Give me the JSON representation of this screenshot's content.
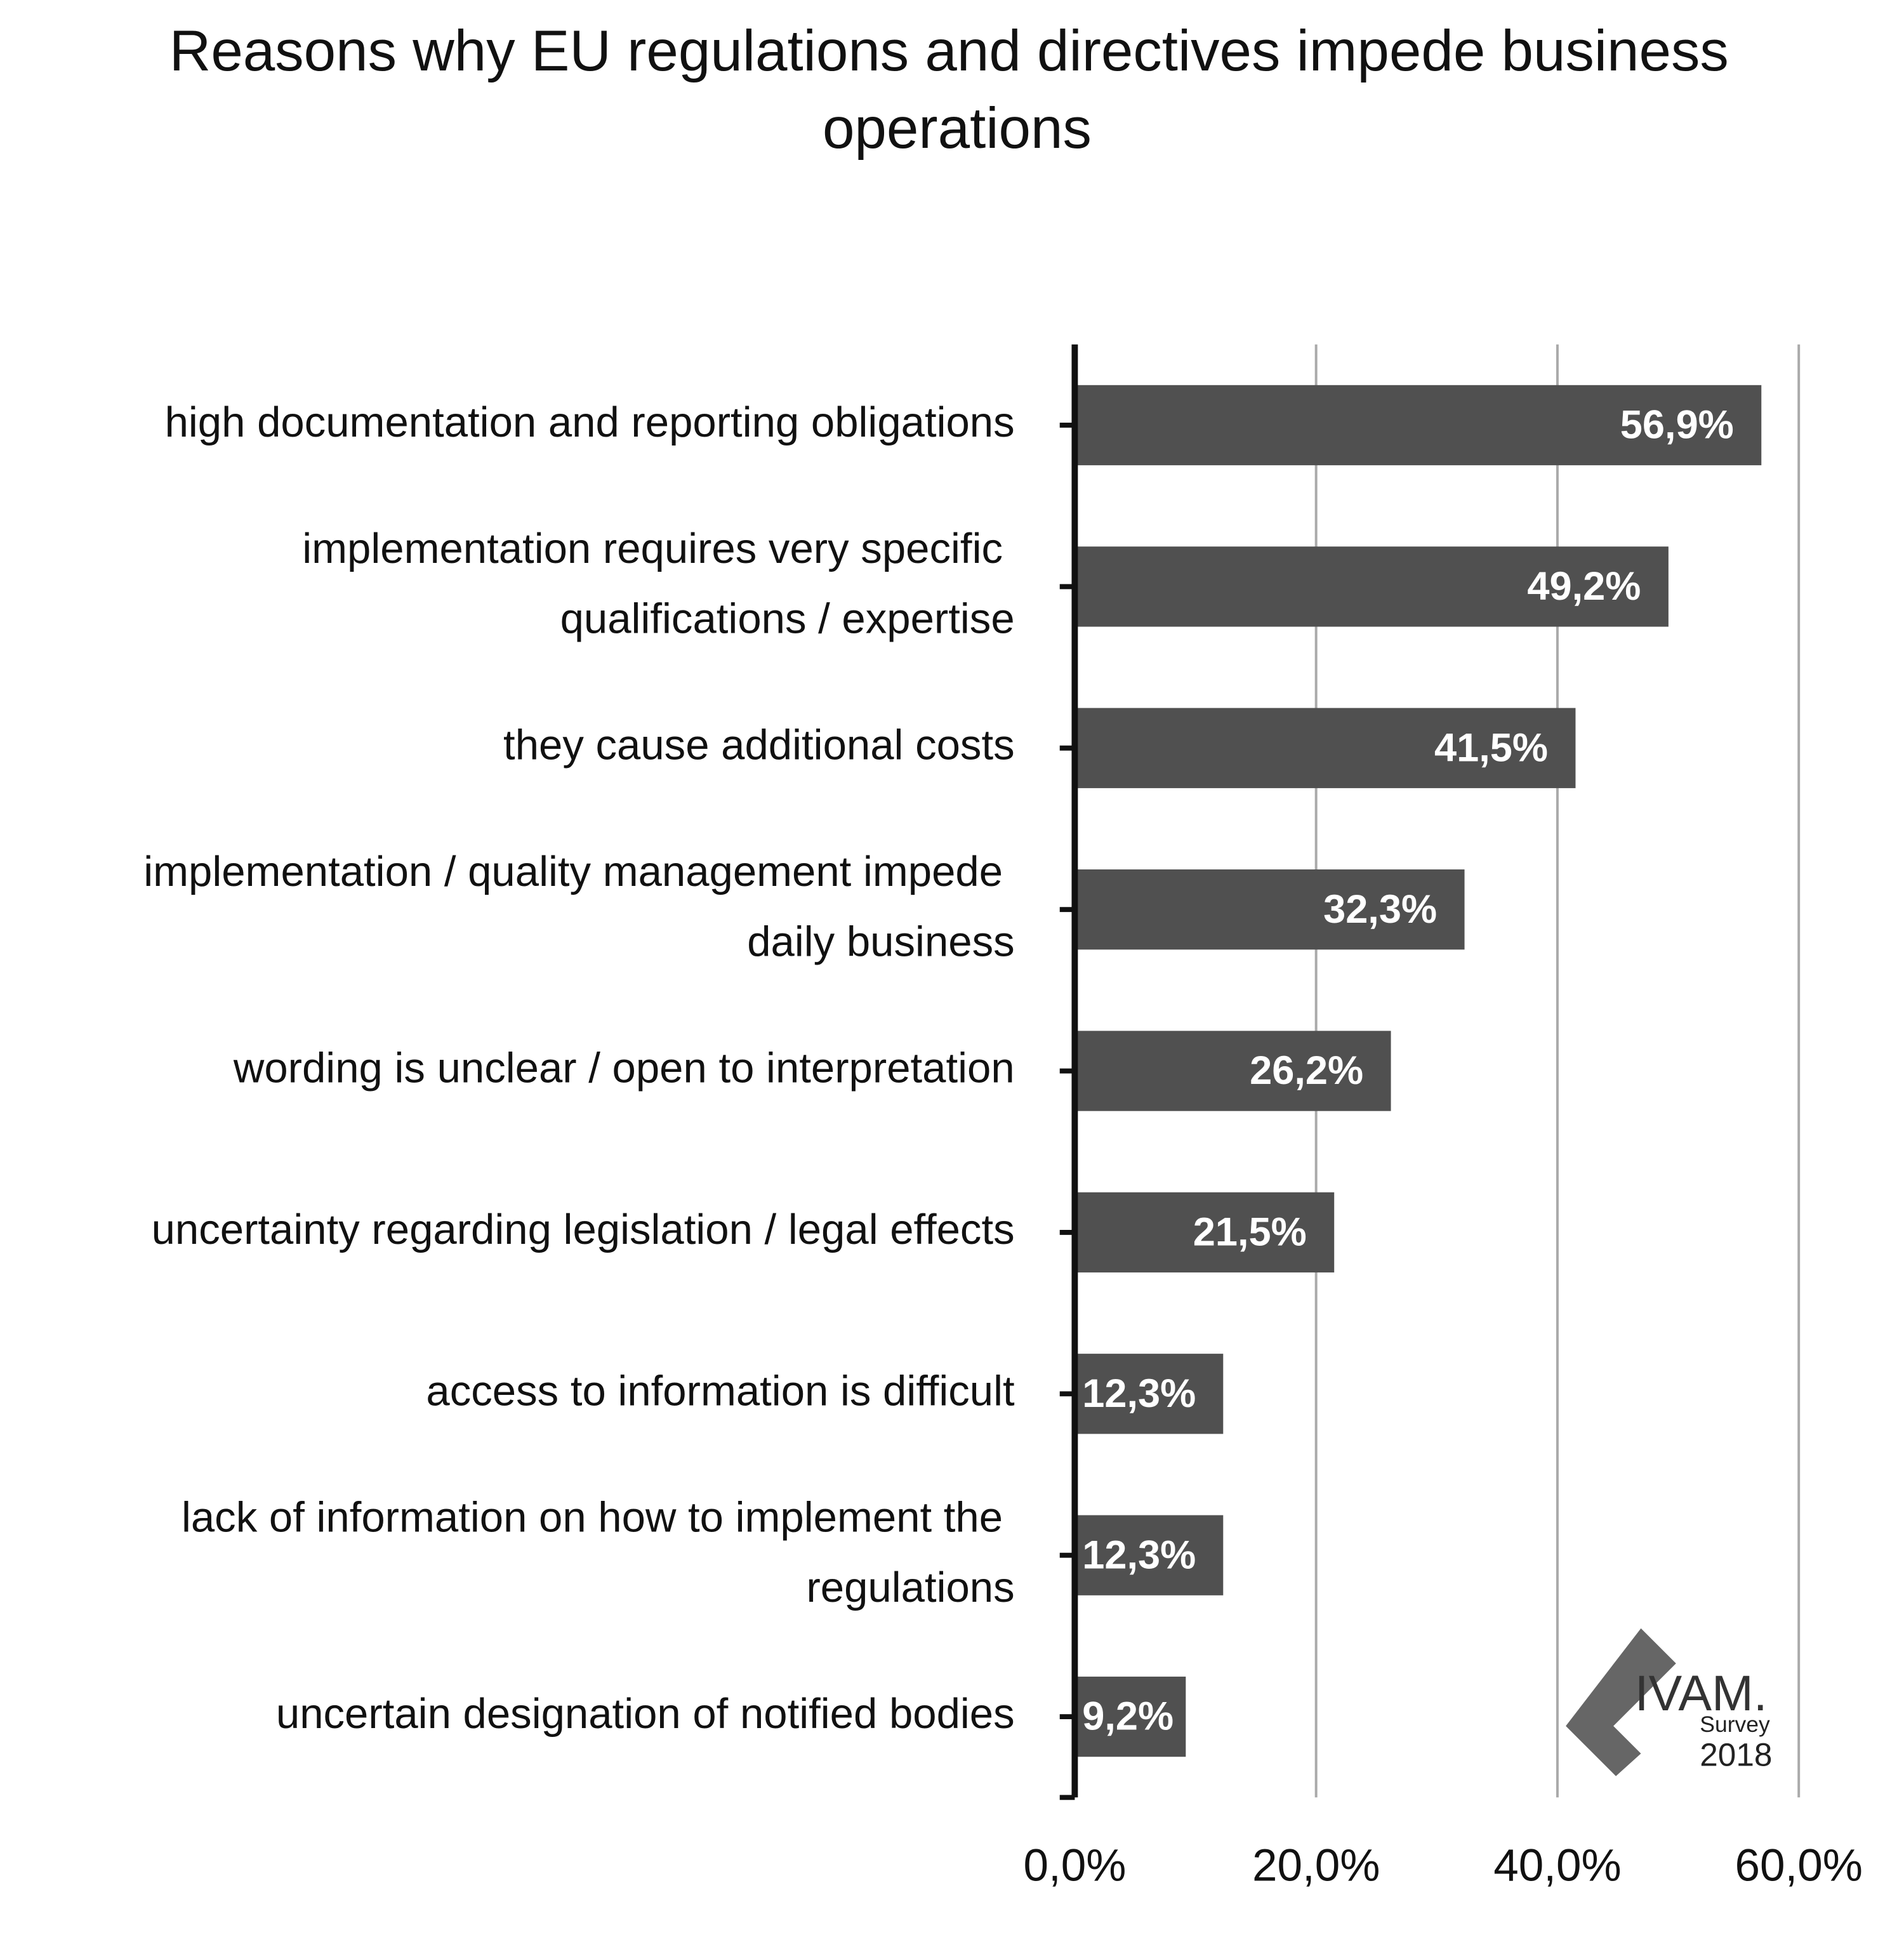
{
  "chart_data": {
    "type": "bar",
    "orientation": "horizontal",
    "title": "Reasons why EU regulations and directives impede business operations",
    "categories": [
      "high documentation and reporting obligations",
      "implementation requires very specific qualifications / expertise",
      "they cause additional costs",
      "implementation / quality management impede daily business",
      "wording is unclear / open to interpretation",
      "uncertainty regarding legislation / legal effects",
      "access to information is difficult",
      "lack of information on how to implement the regulations",
      "uncertain designation of notified bodies"
    ],
    "values": [
      56.9,
      49.2,
      41.5,
      32.3,
      26.2,
      21.5,
      12.3,
      12.3,
      9.2
    ],
    "value_labels": [
      "56,9%",
      "49,2%",
      "41,5%",
      "32,3%",
      "26,2%",
      "21,5%",
      "12,3%",
      "12,3%",
      "9,2%"
    ],
    "color": "#505050",
    "xlim": [
      0,
      60
    ],
    "xticks": [
      {
        "value": 0,
        "label": "0,0%"
      },
      {
        "value": 20,
        "label": "20,0%"
      },
      {
        "value": 40,
        "label": "40,0%"
      },
      {
        "value": 60,
        "label": "60,0%"
      }
    ],
    "grid": true
  },
  "logo": {
    "name": "IVAM.",
    "subtitle": "Survey",
    "year": "2018"
  }
}
